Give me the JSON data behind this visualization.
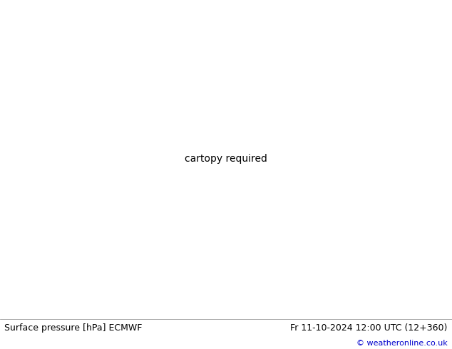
{
  "title_left": "Surface pressure [hPa] ECMWF",
  "title_right": "Fr 11-10-2024 12:00 UTC (12+360)",
  "copyright": "© weatheronline.co.uk",
  "bg_color": "#ffffff",
  "land_color": "#c8f0a0",
  "sea_color": "#ffffff",
  "mountain_color": "#c0c0c0",
  "border_color": "#808080",
  "isobar_color_blue": "#0000cc",
  "isobar_color_black": "#000000",
  "isobar_color_red": "#cc0000",
  "footer_fontsize": 9,
  "copyright_color": "#0000cc",
  "map_extent": [
    -175,
    -50,
    15,
    80
  ],
  "projection": "PlateCarree"
}
